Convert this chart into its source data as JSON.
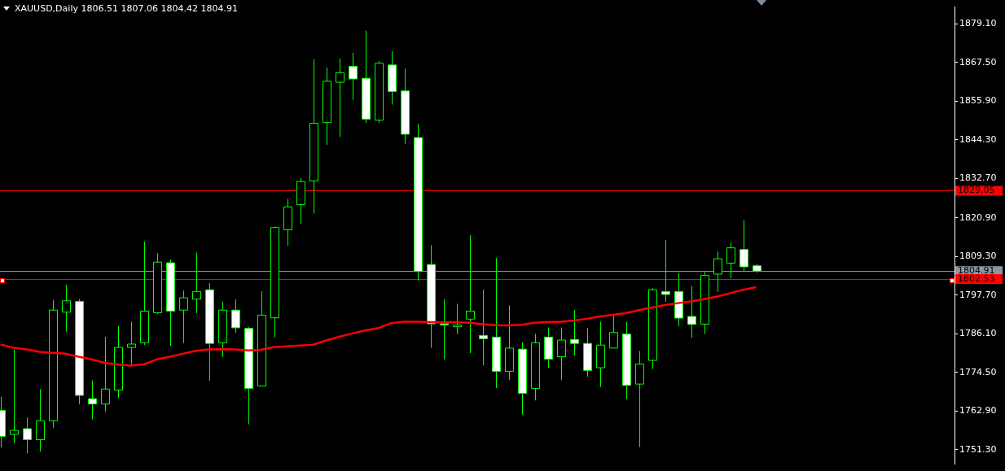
{
  "chart_data": {
    "type": "candlestick",
    "title": "XAUUSD,Daily 1806.51 1807.06 1804.42 1804.91",
    "categories": [
      null,
      null,
      null,
      null,
      null,
      null,
      null,
      null,
      null,
      null,
      null,
      null,
      null,
      null,
      null,
      null,
      null,
      null,
      null,
      null,
      null,
      null,
      null,
      null,
      null,
      null,
      null,
      null,
      null,
      null,
      null,
      null,
      null,
      null,
      null,
      null,
      null,
      null,
      null,
      null,
      null,
      null,
      null,
      null,
      null,
      null,
      null,
      null,
      null,
      null,
      null,
      null,
      null,
      null,
      null,
      null,
      null,
      null,
      null
    ],
    "ohlc": [
      [
        1763.1,
        1767.2,
        1752.0,
        1755.3
      ],
      [
        1755.9,
        1781.4,
        1753.3,
        1757.1
      ],
      [
        1757.6,
        1761.0,
        1750.2,
        1754.3
      ],
      [
        1754.3,
        1769.5,
        1750.7,
        1760.0
      ],
      [
        1760.0,
        1796.3,
        1757.9,
        1793.2
      ],
      [
        1792.6,
        1800.8,
        1786.7,
        1796.0
      ],
      [
        1795.8,
        1796.5,
        1764.9,
        1767.6
      ],
      [
        1766.6,
        1772.1,
        1760.4,
        1765.0
      ],
      [
        1765.0,
        1785.2,
        1762.7,
        1769.5
      ],
      [
        1769.2,
        1788.5,
        1766.8,
        1782.0
      ],
      [
        1782.0,
        1789.7,
        1776.4,
        1783.0
      ],
      [
        1783.4,
        1813.8,
        1782.7,
        1792.9
      ],
      [
        1792.4,
        1810.3,
        1792.0,
        1807.6
      ],
      [
        1807.4,
        1808.4,
        1782.4,
        1792.9
      ],
      [
        1793.2,
        1799.1,
        1783.3,
        1796.9
      ],
      [
        1796.5,
        1810.5,
        1792.3,
        1798.8
      ],
      [
        1799.3,
        1801.3,
        1772.0,
        1783.2
      ],
      [
        1783.4,
        1795.8,
        1779.1,
        1793.2
      ],
      [
        1793.2,
        1796.5,
        1786.4,
        1787.9
      ],
      [
        1787.7,
        1788.2,
        1758.9,
        1769.7
      ],
      [
        1770.4,
        1798.9,
        1770.4,
        1791.7
      ],
      [
        1790.9,
        1818.3,
        1785.0,
        1818.0
      ],
      [
        1817.3,
        1826.6,
        1812.5,
        1824.2
      ],
      [
        1824.9,
        1832.8,
        1819.0,
        1831.8
      ],
      [
        1832.0,
        1868.6,
        1822.2,
        1849.3
      ],
      [
        1849.5,
        1866.0,
        1842.8,
        1861.9
      ],
      [
        1861.6,
        1868.8,
        1845.2,
        1864.5
      ],
      [
        1866.4,
        1870.5,
        1856.3,
        1862.6
      ],
      [
        1862.8,
        1877.1,
        1849.4,
        1850.5
      ],
      [
        1850.2,
        1868.0,
        1849.4,
        1867.3
      ],
      [
        1866.8,
        1870.9,
        1854.9,
        1858.8
      ],
      [
        1859.0,
        1865.7,
        1843.0,
        1846.0
      ],
      [
        1845.0,
        1849.1,
        1802.1,
        1804.8
      ],
      [
        1806.9,
        1812.7,
        1781.9,
        1789.1
      ],
      [
        1789.1,
        1796.5,
        1778.4,
        1788.7
      ],
      [
        1788.2,
        1795.1,
        1786.0,
        1788.7
      ],
      [
        1790.5,
        1815.7,
        1780.3,
        1792.9
      ],
      [
        1785.6,
        1799.4,
        1776.7,
        1784.6
      ],
      [
        1785.1,
        1808.9,
        1769.8,
        1774.8
      ],
      [
        1774.8,
        1794.6,
        1772.2,
        1781.8
      ],
      [
        1781.5,
        1783.5,
        1761.8,
        1768.2
      ],
      [
        1769.7,
        1786.1,
        1766.1,
        1783.4
      ],
      [
        1785.1,
        1788.0,
        1775.8,
        1778.5
      ],
      [
        1779.2,
        1788.0,
        1772.2,
        1784.2
      ],
      [
        1784.4,
        1793.2,
        1779.6,
        1783.2
      ],
      [
        1783.2,
        1787.8,
        1773.2,
        1775.1
      ],
      [
        1775.9,
        1789.7,
        1770.1,
        1782.7
      ],
      [
        1781.8,
        1791.8,
        1781.8,
        1786.5
      ],
      [
        1786.0,
        1789.7,
        1766.5,
        1770.6
      ],
      [
        1771.0,
        1780.9,
        1752.1,
        1777.0
      ],
      [
        1778.1,
        1799.9,
        1775.5,
        1799.3
      ],
      [
        1798.8,
        1814.3,
        1795.7,
        1797.9
      ],
      [
        1798.8,
        1804.3,
        1788.3,
        1790.8
      ],
      [
        1791.3,
        1800.5,
        1784.8,
        1788.9
      ],
      [
        1789.0,
        1805.0,
        1786.0,
        1803.6
      ],
      [
        1804.0,
        1810.8,
        1798.7,
        1808.6
      ],
      [
        1807.3,
        1813.5,
        1802.8,
        1811.9
      ],
      [
        1811.4,
        1820.2,
        1805.0,
        1806.2
      ],
      [
        1806.51,
        1807.06,
        1804.42,
        1804.91
      ]
    ],
    "color": "#00ff00",
    "colors": [
      "#ffffff",
      "#000000",
      "#ffffff",
      "#000000",
      "#000000",
      "#000000",
      "#ffffff",
      "#ffffff",
      "#000000",
      "#000000",
      "#000000",
      "#000000",
      "#000000",
      "#ffffff",
      "#000000",
      "#000000",
      "#ffffff",
      "#000000",
      "#ffffff",
      "#ffffff",
      "#000000",
      "#000000",
      "#000000",
      "#000000",
      "#000000",
      "#000000",
      "#000000",
      "#ffffff",
      "#ffffff",
      "#000000",
      "#ffffff",
      "#ffffff",
      "#ffffff",
      "#ffffff",
      "#ffffff",
      "#000000",
      "#000000",
      "#ffffff",
      "#ffffff",
      "#000000",
      "#ffffff",
      "#000000",
      "#ffffff",
      "#000000",
      "#ffffff",
      "#ffffff",
      "#000000",
      "#000000",
      "#ffffff",
      "#000000",
      "#000000",
      "#ffffff",
      "#ffffff",
      "#ffffff",
      "#000000",
      "#000000",
      "#000000",
      "#ffffff",
      "#ffffff"
    ],
    "series": [
      {
        "type": "line",
        "color": "#ff0000",
        "values": [
          1782.9,
          1781.9,
          1781.4,
          1780.7,
          1780.4,
          1780.1,
          1779.2,
          1778.4,
          1777.4,
          1776.9,
          1776.5,
          1776.9,
          1778.4,
          1779.2,
          1780.1,
          1781.0,
          1781.4,
          1781.5,
          1781.4,
          1781.1,
          1781.3,
          1782.1,
          1782.3,
          1782.6,
          1782.8,
          1784.1,
          1785.2,
          1786.2,
          1787.1,
          1787.8,
          1789.3,
          1789.7,
          1789.7,
          1789.6,
          1789.5,
          1789.5,
          1789.4,
          1789.0,
          1788.7,
          1788.6,
          1788.8,
          1789.4,
          1789.6,
          1789.7,
          1790.1,
          1790.6,
          1791.3,
          1791.8,
          1792.3,
          1793.2,
          1794.0,
          1794.7,
          1795.3,
          1795.8,
          1796.5,
          1797.3,
          1798.3,
          1799.3,
          1800.1
        ]
      }
    ],
    "ylim": [
      1747.0,
      1884.2
    ],
    "yticks": [
      {
        "value": 1879.1,
        "label": "1879.10"
      },
      {
        "value": 1867.5,
        "label": "1867.50"
      },
      {
        "value": 1855.9,
        "label": "1855.90"
      },
      {
        "value": 1844.3,
        "label": "1844.30"
      },
      {
        "value": 1832.7,
        "label": "1832.70"
      },
      {
        "value": 1820.9,
        "label": "1820.90"
      },
      {
        "value": 1809.3,
        "label": "1809.30"
      },
      {
        "value": 1797.7,
        "label": "1797.70"
      },
      {
        "value": 1786.1,
        "label": "1786.10"
      },
      {
        "value": 1774.5,
        "label": "1774.50"
      },
      {
        "value": 1762.9,
        "label": "1762.90"
      },
      {
        "value": 1751.3,
        "label": "1751.30"
      }
    ],
    "ref_lines": [
      {
        "axis": "y",
        "value": 1829.05,
        "label": "1829.05",
        "color": "#ff0000",
        "line_style": "solid"
      },
      {
        "axis": "y",
        "value": 1804.91,
        "label": "1804.91",
        "color": "#8a96a6",
        "line_style": "solid"
      },
      {
        "axis": "y",
        "value": 1802.53,
        "label": "1802.53",
        "color": "#ff0000",
        "line_style": "solid"
      }
    ],
    "tick_labels": "y",
    "grid": false,
    "legend": false
  }
}
